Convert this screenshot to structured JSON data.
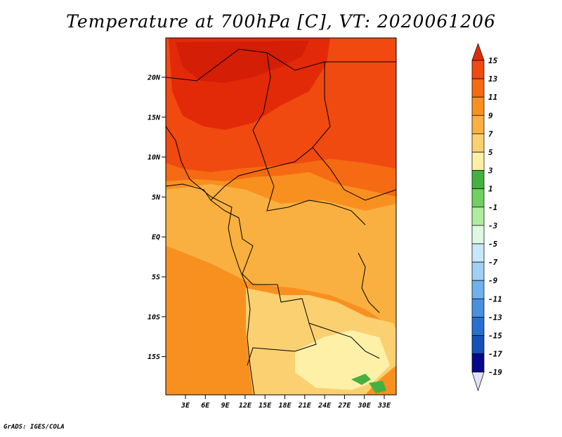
{
  "title": "Temperature at 700hPa [C], VT: 2020061206",
  "footer": "GrADS: IGES/COLA",
  "axes": {
    "lat_labels": [
      "20N",
      "15N",
      "10N",
      "5N",
      "EQ",
      "5S",
      "10S",
      "15S"
    ],
    "lon_labels": [
      "3E",
      "6E",
      "9E",
      "12E",
      "15E",
      "18E",
      "21E",
      "24E",
      "27E",
      "30E",
      "33E"
    ]
  },
  "colorbar": {
    "levels": [
      "15",
      "13",
      "11",
      "9",
      "7",
      "5",
      "3",
      "1",
      "-1",
      "-3",
      "-5",
      "-7",
      "-9",
      "-11",
      "-13",
      "-15",
      "-17",
      "-19"
    ],
    "colors": [
      "#e32a08",
      "#f04a10",
      "#f56a12",
      "#f89020",
      "#f9b040",
      "#fbd070",
      "#fff0a8",
      "#44b040",
      "#70d060",
      "#b0eca0",
      "#e0f8e0",
      "#c8e8f8",
      "#a0d0f4",
      "#70b0ec",
      "#4890e0",
      "#2870d0",
      "#1450b8",
      "#08088a",
      "#e0e0f8"
    ]
  }
}
